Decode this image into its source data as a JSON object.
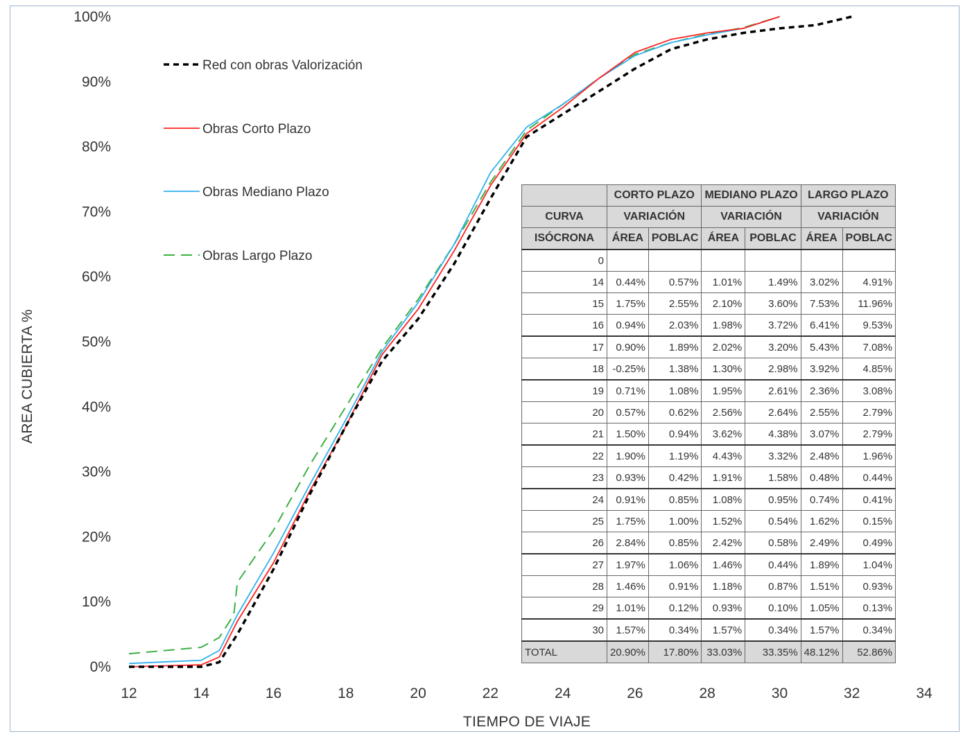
{
  "chart_data": {
    "type": "line",
    "xlabel": "TIEMPO DE VIAJE",
    "ylabel": "AREA CUBIERTA %",
    "xlim": [
      12,
      34
    ],
    "ylim": [
      0,
      100
    ],
    "xticks": [
      "12",
      "14",
      "16",
      "18",
      "20",
      "22",
      "24",
      "26",
      "28",
      "30",
      "32",
      "34"
    ],
    "yticks": [
      "0%",
      "10%",
      "20%",
      "30%",
      "40%",
      "50%",
      "60%",
      "70%",
      "80%",
      "90%",
      "100%"
    ],
    "grid": false,
    "legend_position": "top-left",
    "series": [
      {
        "name": "Red con obras Valorización",
        "color": "#000000",
        "dash": "dashed-bold",
        "points": [
          [
            12,
            0
          ],
          [
            14,
            0
          ],
          [
            14.5,
            0.7
          ],
          [
            15,
            5
          ],
          [
            16,
            15
          ],
          [
            17,
            26.5
          ],
          [
            18,
            37
          ],
          [
            19,
            47
          ],
          [
            20,
            53.5
          ],
          [
            21,
            62
          ],
          [
            22,
            72
          ],
          [
            23,
            81.5
          ],
          [
            24,
            85
          ],
          [
            25,
            88.5
          ],
          [
            26,
            92
          ],
          [
            27,
            95
          ],
          [
            28,
            96.5
          ],
          [
            29,
            97.5
          ],
          [
            30,
            98.2
          ],
          [
            31,
            98.7
          ],
          [
            32,
            100
          ]
        ]
      },
      {
        "name": "Obras Corto Plazo",
        "color": "#ff2020",
        "dash": "solid",
        "points": [
          [
            12,
            0
          ],
          [
            14,
            0.3
          ],
          [
            14.5,
            1.5
          ],
          [
            15,
            7
          ],
          [
            16,
            16
          ],
          [
            17,
            27
          ],
          [
            18,
            37
          ],
          [
            19,
            48
          ],
          [
            20,
            55
          ],
          [
            21,
            64
          ],
          [
            22,
            74
          ],
          [
            23,
            82
          ],
          [
            24,
            86
          ],
          [
            25,
            90.5
          ],
          [
            26,
            94.5
          ],
          [
            27,
            96.5
          ],
          [
            28,
            97.5
          ],
          [
            29,
            98.2
          ],
          [
            30,
            100
          ]
        ]
      },
      {
        "name": "Obras Mediano Plazo",
        "color": "#2fb0ee",
        "dash": "solid",
        "points": [
          [
            12,
            0.5
          ],
          [
            14,
            1
          ],
          [
            14.5,
            2.5
          ],
          [
            15,
            8
          ],
          [
            16,
            17.5
          ],
          [
            17,
            28
          ],
          [
            18,
            38
          ],
          [
            19,
            48.5
          ],
          [
            20,
            56
          ],
          [
            21,
            65
          ],
          [
            22,
            76
          ],
          [
            23,
            83
          ],
          [
            24,
            86.5
          ],
          [
            25,
            90.5
          ],
          [
            26,
            94
          ],
          [
            27,
            96
          ],
          [
            28,
            97.2
          ],
          [
            29,
            98.2
          ],
          [
            30,
            100
          ]
        ]
      },
      {
        "name": "Obras Largo Plazo",
        "color": "#3cb043",
        "dash": "dashed",
        "points": [
          [
            12,
            2
          ],
          [
            14,
            3
          ],
          [
            14.5,
            4.5
          ],
          [
            14.9,
            8
          ],
          [
            15,
            13
          ],
          [
            16,
            21
          ],
          [
            17,
            31
          ],
          [
            18,
            40
          ],
          [
            19,
            49
          ],
          [
            20,
            56.5
          ],
          [
            21,
            65
          ],
          [
            22,
            74.5
          ],
          [
            23,
            82.5
          ],
          [
            24,
            86.5
          ],
          [
            25,
            90.5
          ],
          [
            26,
            94.2
          ],
          [
            27,
            96
          ],
          [
            28,
            97.3
          ],
          [
            29,
            98.3
          ],
          [
            30,
            100
          ]
        ]
      }
    ]
  },
  "table": {
    "groups": [
      "CORTO PLAZO",
      "MEDIANO PLAZO",
      "LARGO PLAZO"
    ],
    "curva_label": "CURVA",
    "variacion_label": "VARIACIÓN",
    "isocrona_label": "ISÓCRONA",
    "area_label": "ÁREA",
    "poblac_label": "POBLAC",
    "rows": [
      {
        "iso": "0",
        "vals": [
          "",
          "",
          "",
          "",
          "",
          ""
        ]
      },
      {
        "iso": "14",
        "vals": [
          "0.44%",
          "0.57%",
          "1.01%",
          "1.49%",
          "3.02%",
          "4.91%"
        ]
      },
      {
        "iso": "15",
        "vals": [
          "1.75%",
          "2.55%",
          "2.10%",
          "3.60%",
          "7.53%",
          "11.96%"
        ]
      },
      {
        "iso": "16",
        "vals": [
          "0.94%",
          "2.03%",
          "1.98%",
          "3.72%",
          "6.41%",
          "9.53%"
        ]
      },
      {
        "iso": "17",
        "vals": [
          "0.90%",
          "1.89%",
          "2.02%",
          "3.20%",
          "5.43%",
          "7.08%"
        ]
      },
      {
        "iso": "18",
        "vals": [
          "-0.25%",
          "1.38%",
          "1.30%",
          "2.98%",
          "3.92%",
          "4.85%"
        ]
      },
      {
        "iso": "19",
        "vals": [
          "0.71%",
          "1.08%",
          "1.95%",
          "2.61%",
          "2.36%",
          "3.08%"
        ]
      },
      {
        "iso": "20",
        "vals": [
          "0.57%",
          "0.62%",
          "2.56%",
          "2.64%",
          "2.55%",
          "2.79%"
        ]
      },
      {
        "iso": "21",
        "vals": [
          "1.50%",
          "0.94%",
          "3.62%",
          "4.38%",
          "3.07%",
          "2.79%"
        ]
      },
      {
        "iso": "22",
        "vals": [
          "1.90%",
          "1.19%",
          "4.43%",
          "3.32%",
          "2.48%",
          "1.96%"
        ]
      },
      {
        "iso": "23",
        "vals": [
          "0.93%",
          "0.42%",
          "1.91%",
          "1.58%",
          "0.48%",
          "0.44%"
        ]
      },
      {
        "iso": "24",
        "vals": [
          "0.91%",
          "0.85%",
          "1.08%",
          "0.95%",
          "0.74%",
          "0.41%"
        ]
      },
      {
        "iso": "25",
        "vals": [
          "1.75%",
          "1.00%",
          "1.52%",
          "0.54%",
          "1.62%",
          "0.15%"
        ]
      },
      {
        "iso": "26",
        "vals": [
          "2.84%",
          "0.85%",
          "2.42%",
          "0.58%",
          "2.49%",
          "0.49%"
        ]
      },
      {
        "iso": "27",
        "vals": [
          "1.97%",
          "1.06%",
          "1.46%",
          "0.44%",
          "1.89%",
          "1.04%"
        ]
      },
      {
        "iso": "28",
        "vals": [
          "1.46%",
          "0.91%",
          "1.18%",
          "0.87%",
          "1.51%",
          "0.93%"
        ]
      },
      {
        "iso": "29",
        "vals": [
          "1.01%",
          "0.12%",
          "0.93%",
          "0.10%",
          "1.05%",
          "0.13%"
        ]
      },
      {
        "iso": "30",
        "vals": [
          "1.57%",
          "0.34%",
          "1.57%",
          "0.34%",
          "1.57%",
          "0.34%"
        ]
      }
    ],
    "total": {
      "label": "TOTAL",
      "vals": [
        "20.90%",
        "17.80%",
        "33.03%",
        "33.35%",
        "48.12%",
        "52.86%"
      ]
    }
  }
}
